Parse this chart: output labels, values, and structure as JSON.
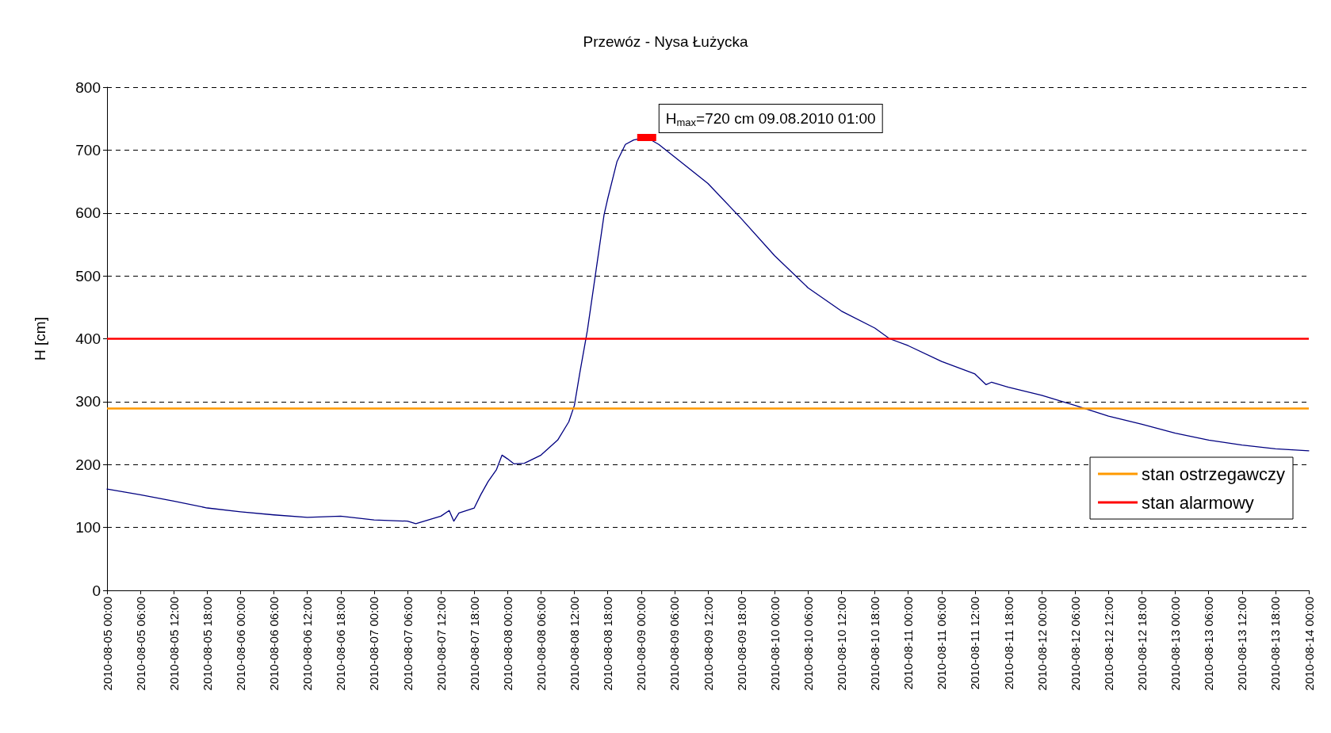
{
  "chart_data": {
    "type": "line",
    "title": "Przewóz - Nysa Łużycka",
    "ylabel": "H [cm]",
    "x": [
      "2010-08-05T00:00",
      "2010-08-05T06:00",
      "2010-08-05T12:00",
      "2010-08-05T18:00",
      "2010-08-06T00:00",
      "2010-08-06T06:00",
      "2010-08-06T12:00",
      "2010-08-06T18:00",
      "2010-08-07T00:00",
      "2010-08-07T06:00",
      "2010-08-07T07:30",
      "2010-08-07T12:00",
      "2010-08-07T13:30",
      "2010-08-07T14:20",
      "2010-08-07T15:15",
      "2010-08-07T18:00",
      "2010-08-07T19:10",
      "2010-08-07T20:30",
      "2010-08-07T22:00",
      "2010-08-07T23:00",
      "2010-08-08T00:00",
      "2010-08-08T01:10",
      "2010-08-08T03:00",
      "2010-08-08T06:00",
      "2010-08-08T09:00",
      "2010-08-08T11:00",
      "2010-08-08T12:00",
      "2010-08-08T13:00",
      "2010-08-08T14:20",
      "2010-08-08T15:50",
      "2010-08-08T17:20",
      "2010-08-08T18:00",
      "2010-08-08T19:40",
      "2010-08-08T21:10",
      "2010-08-08T22:40",
      "2010-08-09T01:00",
      "2010-08-09T03:10",
      "2010-08-09T06:00",
      "2010-08-09T12:00",
      "2010-08-09T18:00",
      "2010-08-10T00:00",
      "2010-08-10T06:00",
      "2010-08-10T12:00",
      "2010-08-10T18:00",
      "2010-08-10T20:40",
      "2010-08-11T00:00",
      "2010-08-11T06:00",
      "2010-08-11T12:00",
      "2010-08-11T14:00",
      "2010-08-11T15:00",
      "2010-08-11T18:00",
      "2010-08-12T00:00",
      "2010-08-12T06:00",
      "2010-08-12T12:00",
      "2010-08-12T18:00",
      "2010-08-13T00:00",
      "2010-08-13T06:00",
      "2010-08-13T12:00",
      "2010-08-13T18:00",
      "2010-08-14T00:00"
    ],
    "series": [
      {
        "color": "#000080",
        "values": [
          161,
          152,
          142,
          131,
          125,
          120,
          116,
          118,
          112,
          110,
          106,
          118,
          127,
          110,
          123,
          131,
          152,
          173,
          192,
          215,
          209,
          201,
          202,
          215,
          239,
          268,
          294,
          347,
          413,
          505,
          597,
          623,
          682,
          709,
          716,
          720,
          709,
          689,
          647,
          591,
          532,
          481,
          444,
          417,
          400,
          389,
          364,
          344,
          327,
          331,
          323,
          310,
          294,
          277,
          264,
          250,
          239,
          231,
          225,
          222
        ]
      }
    ],
    "xlim": [
      "2010-08-05T00:00",
      "2010-08-14T00:00"
    ],
    "xticks": [
      {
        "value": "2010-08-05T00:00",
        "label": "2010-08-05 00:00"
      },
      {
        "value": "2010-08-05T06:00",
        "label": "2010-08-05 06:00"
      },
      {
        "value": "2010-08-05T12:00",
        "label": "2010-08-05 12:00"
      },
      {
        "value": "2010-08-05T18:00",
        "label": "2010-08-05 18:00"
      },
      {
        "value": "2010-08-06T00:00",
        "label": "2010-08-06 00:00"
      },
      {
        "value": "2010-08-06T06:00",
        "label": "2010-08-06 06:00"
      },
      {
        "value": "2010-08-06T12:00",
        "label": "2010-08-06 12:00"
      },
      {
        "value": "2010-08-06T18:00",
        "label": "2010-08-06 18:00"
      },
      {
        "value": "2010-08-07T00:00",
        "label": "2010-08-07 00:00"
      },
      {
        "value": "2010-08-07T06:00",
        "label": "2010-08-07 06:00"
      },
      {
        "value": "2010-08-07T12:00",
        "label": "2010-08-07 12:00"
      },
      {
        "value": "2010-08-07T18:00",
        "label": "2010-08-07 18:00"
      },
      {
        "value": "2010-08-08T00:00",
        "label": "2010-08-08 00:00"
      },
      {
        "value": "2010-08-08T06:00",
        "label": "2010-08-08 06:00"
      },
      {
        "value": "2010-08-08T12:00",
        "label": "2010-08-08 12:00"
      },
      {
        "value": "2010-08-08T18:00",
        "label": "2010-08-08 18:00"
      },
      {
        "value": "2010-08-09T00:00",
        "label": "2010-08-09 00:00"
      },
      {
        "value": "2010-08-09T06:00",
        "label": "2010-08-09 06:00"
      },
      {
        "value": "2010-08-09T12:00",
        "label": "2010-08-09 12:00"
      },
      {
        "value": "2010-08-09T18:00",
        "label": "2010-08-09 18:00"
      },
      {
        "value": "2010-08-10T00:00",
        "label": "2010-08-10 00:00"
      },
      {
        "value": "2010-08-10T06:00",
        "label": "2010-08-10 06:00"
      },
      {
        "value": "2010-08-10T12:00",
        "label": "2010-08-10 12:00"
      },
      {
        "value": "2010-08-10T18:00",
        "label": "2010-08-10 18:00"
      },
      {
        "value": "2010-08-11T00:00",
        "label": "2010-08-11 00:00"
      },
      {
        "value": "2010-08-11T06:00",
        "label": "2010-08-11 06:00"
      },
      {
        "value": "2010-08-11T12:00",
        "label": "2010-08-11 12:00"
      },
      {
        "value": "2010-08-11T18:00",
        "label": "2010-08-11 18:00"
      },
      {
        "value": "2010-08-12T00:00",
        "label": "2010-08-12 00:00"
      },
      {
        "value": "2010-08-12T06:00",
        "label": "2010-08-12 06:00"
      },
      {
        "value": "2010-08-12T12:00",
        "label": "2010-08-12 12:00"
      },
      {
        "value": "2010-08-12T18:00",
        "label": "2010-08-12 18:00"
      },
      {
        "value": "2010-08-13T00:00",
        "label": "2010-08-13 00:00"
      },
      {
        "value": "2010-08-13T06:00",
        "label": "2010-08-13 06:00"
      },
      {
        "value": "2010-08-13T12:00",
        "label": "2010-08-13 12:00"
      },
      {
        "value": "2010-08-13T18:00",
        "label": "2010-08-13 18:00"
      },
      {
        "value": "2010-08-14T00:00",
        "label": "2010-08-14 00:00"
      }
    ],
    "ylim": [
      0,
      800
    ],
    "yticks": [
      0,
      100,
      200,
      300,
      400,
      500,
      600,
      700,
      800
    ],
    "grid": "y",
    "line_style": "solid",
    "marker": "none",
    "legend": "bottom right",
    "ref_lines": [
      {
        "axis": "y",
        "value": 290,
        "label": "stan ostrzegawczy",
        "color": "#ff9900"
      },
      {
        "axis": "y",
        "value": 400,
        "label": "stan alarmowy",
        "color": "#ff0000"
      }
    ],
    "annotations": [
      {
        "text": "H$_{max}$=720 cm 09.08.2010 01:00",
        "x": "2010-08-09T01:00",
        "y": 720
      }
    ]
  }
}
